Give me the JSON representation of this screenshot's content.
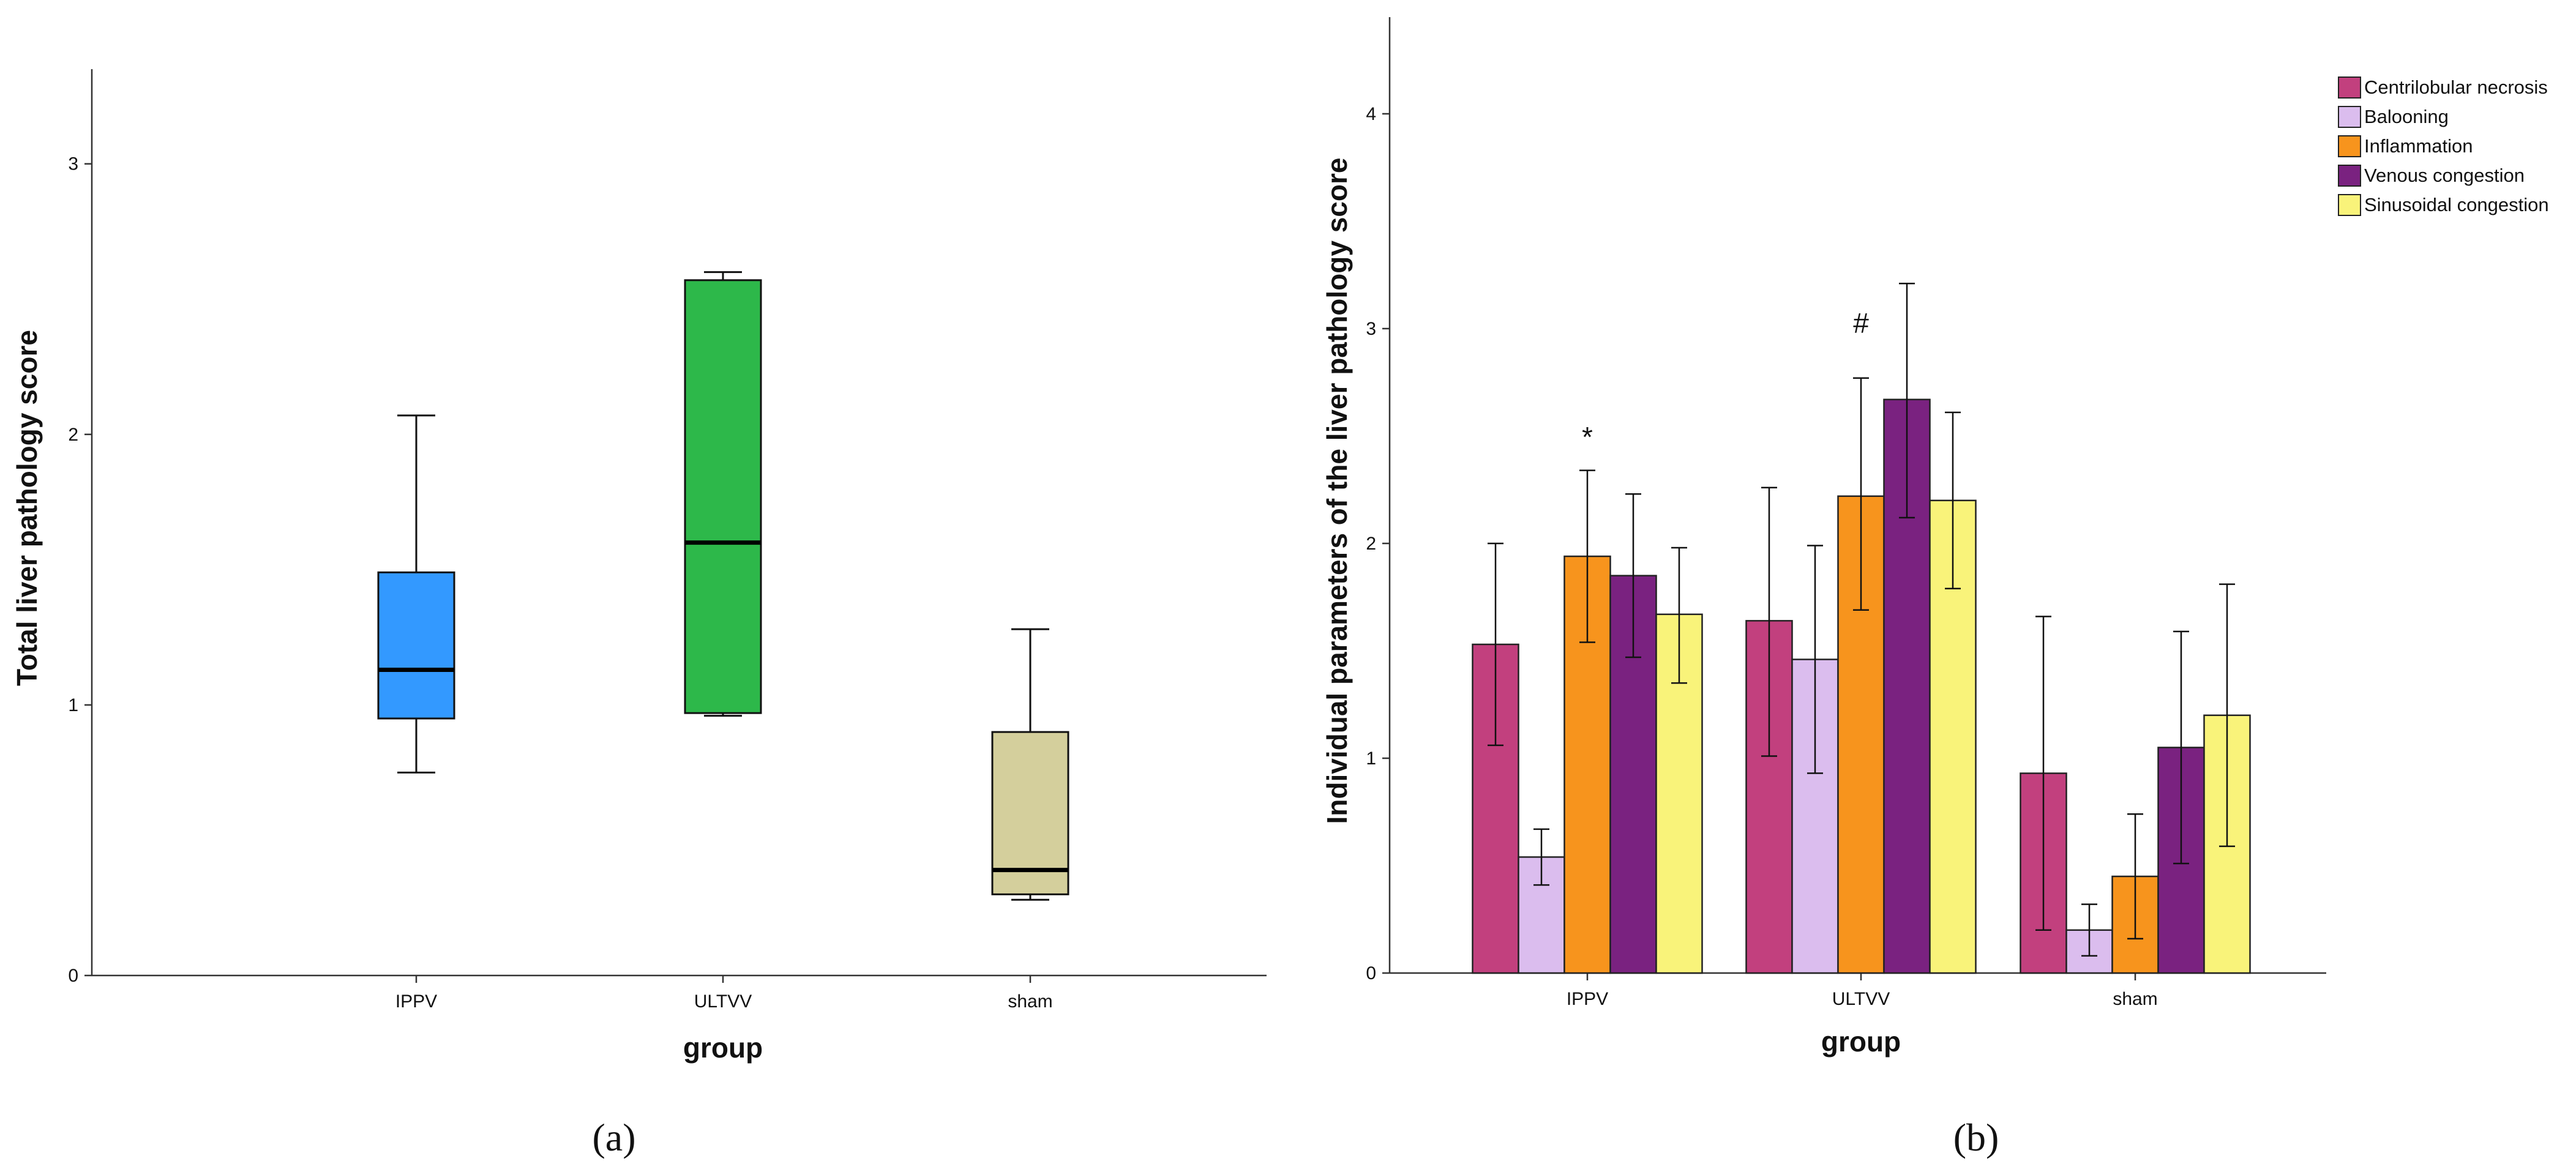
{
  "chart_data": [
    {
      "type": "box",
      "panel_label": "(a)",
      "xlabel": "group",
      "ylabel": "Total liver pathology score",
      "ylim": [
        0,
        3.35
      ],
      "yticks": [
        "0",
        "1",
        "2",
        "3"
      ],
      "categories": [
        "IPPV",
        "ULTVV",
        "sham"
      ],
      "boxes": [
        {
          "name": "IPPV",
          "min": 0.75,
          "q1": 0.95,
          "median": 1.13,
          "q3": 1.49,
          "max": 2.07,
          "color": "#3399ff"
        },
        {
          "name": "ULTVV",
          "min": 0.96,
          "q1": 0.97,
          "median": 1.6,
          "q3": 2.57,
          "max": 2.6,
          "color": "#2db84a"
        },
        {
          "name": "sham",
          "min": 0.28,
          "q1": 0.3,
          "median": 0.39,
          "q3": 0.9,
          "max": 1.28,
          "color": "#d4cf9c"
        }
      ]
    },
    {
      "type": "bar",
      "panel_label": "(b)",
      "xlabel": "group",
      "ylabel": "Individual parameters of the liver pathology score",
      "ylim": [
        0,
        4.45
      ],
      "yticks": [
        "0",
        "1",
        "2",
        "3",
        "4"
      ],
      "categories": [
        "IPPV",
        "ULTVV",
        "sham"
      ],
      "series": [
        {
          "name": "Centrilobular necrosis",
          "color": "#c2407e",
          "values": [
            1.53,
            1.64,
            0.93
          ],
          "err_low": [
            1.06,
            1.01,
            0.2
          ],
          "err_high": [
            2.0,
            2.26,
            1.66
          ]
        },
        {
          "name": "Balooning",
          "color": "#dbbdee",
          "values": [
            0.54,
            1.46,
            0.2
          ],
          "err_low": [
            0.41,
            0.93,
            0.08
          ],
          "err_high": [
            0.67,
            1.99,
            0.32
          ]
        },
        {
          "name": "Inflammation",
          "color": "#f7941d",
          "values": [
            1.94,
            2.22,
            0.45
          ],
          "err_low": [
            1.54,
            1.69,
            0.16
          ],
          "err_high": [
            2.34,
            2.77,
            0.74
          ]
        },
        {
          "name": "Venous congestion",
          "color": "#7a2280",
          "values": [
            1.85,
            2.67,
            1.05
          ],
          "err_low": [
            1.47,
            2.12,
            0.51
          ],
          "err_high": [
            2.23,
            3.21,
            1.59
          ]
        },
        {
          "name": "Sinusoidal congestion",
          "color": "#f9f37a",
          "values": [
            1.67,
            2.2,
            1.2
          ],
          "err_low": [
            1.35,
            1.79,
            0.59
          ],
          "err_high": [
            1.98,
            2.61,
            1.81
          ]
        }
      ],
      "annotations": [
        {
          "text": "*",
          "category": "IPPV",
          "y": 2.45
        },
        {
          "text": "#",
          "category": "ULTVV",
          "y": 2.98
        }
      ],
      "legend_position": "top-right"
    }
  ]
}
